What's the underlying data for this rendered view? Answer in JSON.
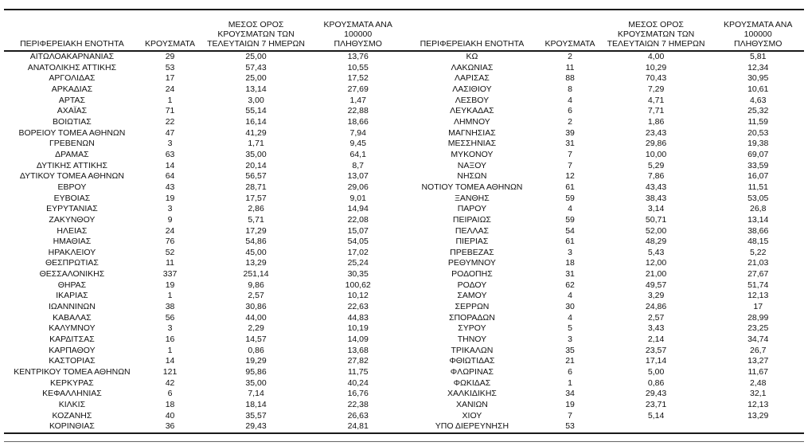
{
  "page": {
    "background": "#ffffff",
    "text_color": "#111111",
    "rule_color": "#1a1a1a"
  },
  "tables": {
    "headers": {
      "region": "ΠΕΡΙΦΕΡΕΙΑΚΗ ΕΝΟΤΗΤΑ",
      "cases": "ΚΡΟΥΣΜΑΤΑ",
      "avg7_last7days": "ΜΕΣΟΣ ΟΡΟΣ\nΚΡΟΥΣΜΑΤΩΝ ΤΩΝ\nΤΕΛΕΥΤΑΙΩΝ 7 ΗΜΕΡΩΝ",
      "per_100k": "ΚΡΟΥΣΜΑΤΑ ΑΝΑ 100000\nΠΛΗΘΥΣΜΟ"
    },
    "left_rows": [
      [
        "ΑΙΤΩΛΟΑΚΑΡΝΑΝΙΑΣ",
        "29",
        "25,00",
        "13,76"
      ],
      [
        "ΑΝΑΤΟΛΙΚΗΣ ΑΤΤΙΚΗΣ",
        "53",
        "57,43",
        "10,55"
      ],
      [
        "ΑΡΓΟΛΙΔΑΣ",
        "17",
        "25,00",
        "17,52"
      ],
      [
        "ΑΡΚΑΔΙΑΣ",
        "24",
        "13,14",
        "27,69"
      ],
      [
        "ΑΡΤΑΣ",
        "1",
        "3,00",
        "1,47"
      ],
      [
        "ΑΧΑΪΑΣ",
        "71",
        "55,14",
        "22,88"
      ],
      [
        "ΒΟΙΩΤΙΑΣ",
        "22",
        "16,14",
        "18,66"
      ],
      [
        "ΒΟΡΕΙΟΥ ΤΟΜΕΑ ΑΘΗΝΩΝ",
        "47",
        "41,29",
        "7,94"
      ],
      [
        "ΓΡΕΒΕΝΩΝ",
        "3",
        "1,71",
        "9,45"
      ],
      [
        "ΔΡΑΜΑΣ",
        "63",
        "35,00",
        "64,1"
      ],
      [
        "ΔΥΤΙΚΗΣ ΑΤΤΙΚΗΣ",
        "14",
        "20,14",
        "8,7"
      ],
      [
        "ΔΥΤΙΚΟΥ ΤΟΜΕΑ ΑΘΗΝΩΝ",
        "64",
        "56,57",
        "13,07"
      ],
      [
        "ΕΒΡΟΥ",
        "43",
        "28,71",
        "29,06"
      ],
      [
        "ΕΥΒΟΙΑΣ",
        "19",
        "17,57",
        "9,01"
      ],
      [
        "ΕΥΡΥΤΑΝΙΑΣ",
        "3",
        "2,86",
        "14,94"
      ],
      [
        "ΖΑΚΥΝΘΟΥ",
        "9",
        "5,71",
        "22,08"
      ],
      [
        "ΗΛΕΙΑΣ",
        "24",
        "17,29",
        "15,07"
      ],
      [
        "ΗΜΑΘΙΑΣ",
        "76",
        "54,86",
        "54,05"
      ],
      [
        "ΗΡΑΚΛΕΙΟΥ",
        "52",
        "45,00",
        "17,02"
      ],
      [
        "ΘΕΣΠΡΩΤΙΑΣ",
        "11",
        "13,29",
        "25,24"
      ],
      [
        "ΘΕΣΣΑΛΟΝΙΚΗΣ",
        "337",
        "251,14",
        "30,35"
      ],
      [
        "ΘΗΡΑΣ",
        "19",
        "9,86",
        "100,62"
      ],
      [
        "ΙΚΑΡΙΑΣ",
        "1",
        "2,57",
        "10,12"
      ],
      [
        "ΙΩΑΝΝΙΝΩΝ",
        "38",
        "30,86",
        "22,63"
      ],
      [
        "ΚΑΒΑΛΑΣ",
        "56",
        "44,00",
        "44,83"
      ],
      [
        "ΚΑΛΥΜΝΟΥ",
        "3",
        "2,29",
        "10,19"
      ],
      [
        "ΚΑΡΔΙΤΣΑΣ",
        "16",
        "14,57",
        "14,09"
      ],
      [
        "ΚΑΡΠΑΘΟΥ",
        "1",
        "0,86",
        "13,68"
      ],
      [
        "ΚΑΣΤΟΡΙΑΣ",
        "14",
        "19,29",
        "27,82"
      ],
      [
        "ΚΕΝΤΡΙΚΟΥ ΤΟΜΕΑ ΑΘΗΝΩΝ",
        "121",
        "95,86",
        "11,75"
      ],
      [
        "ΚΕΡΚΥΡΑΣ",
        "42",
        "35,00",
        "40,24"
      ],
      [
        "ΚΕΦΑΛΛΗΝΙΑΣ",
        "6",
        "7,14",
        "16,76"
      ],
      [
        "ΚΙΛΚΙΣ",
        "18",
        "18,14",
        "22,38"
      ],
      [
        "ΚΟΖΑΝΗΣ",
        "40",
        "35,57",
        "26,63"
      ],
      [
        "ΚΟΡΙΝΘΙΑΣ",
        "36",
        "29,43",
        "24,81"
      ]
    ],
    "right_rows": [
      [
        "ΚΩ",
        "2",
        "4,00",
        "5,81"
      ],
      [
        "ΛΑΚΩΝΙΑΣ",
        "11",
        "10,29",
        "12,34"
      ],
      [
        "ΛΑΡΙΣΑΣ",
        "88",
        "70,43",
        "30,95"
      ],
      [
        "ΛΑΣΙΘΙΟΥ",
        "8",
        "7,29",
        "10,61"
      ],
      [
        "ΛΕΣΒΟΥ",
        "4",
        "4,71",
        "4,63"
      ],
      [
        "ΛΕΥΚΑΔΑΣ",
        "6",
        "7,71",
        "25,32"
      ],
      [
        "ΛΗΜΝΟΥ",
        "2",
        "1,86",
        "11,59"
      ],
      [
        "ΜΑΓΝΗΣΙΑΣ",
        "39",
        "23,43",
        "20,53"
      ],
      [
        "ΜΕΣΣΗΝΙΑΣ",
        "31",
        "29,86",
        "19,38"
      ],
      [
        "ΜΥΚΟΝΟΥ",
        "7",
        "10,00",
        "69,07"
      ],
      [
        "ΝΑΞΟΥ",
        "7",
        "5,29",
        "33,59"
      ],
      [
        "ΝΗΣΩΝ",
        "12",
        "7,86",
        "16,07"
      ],
      [
        "ΝΟΤΙΟΥ ΤΟΜΕΑ ΑΘΗΝΩΝ",
        "61",
        "43,43",
        "11,51"
      ],
      [
        "ΞΑΝΘΗΣ",
        "59",
        "38,43",
        "53,05"
      ],
      [
        "ΠΑΡΟΥ",
        "4",
        "3,14",
        "26,8"
      ],
      [
        "ΠΕΙΡΑΙΩΣ",
        "59",
        "50,71",
        "13,14"
      ],
      [
        "ΠΕΛΛΑΣ",
        "54",
        "52,00",
        "38,66"
      ],
      [
        "ΠΙΕΡΙΑΣ",
        "61",
        "48,29",
        "48,15"
      ],
      [
        "ΠΡΕΒΕΖΑΣ",
        "3",
        "5,43",
        "5,22"
      ],
      [
        "ΡΕΘΥΜΝΟΥ",
        "18",
        "12,00",
        "21,03"
      ],
      [
        "ΡΟΔΟΠΗΣ",
        "31",
        "21,00",
        "27,67"
      ],
      [
        "ΡΟΔΟΥ",
        "62",
        "49,57",
        "51,74"
      ],
      [
        "ΣΑΜΟΥ",
        "4",
        "3,29",
        "12,13"
      ],
      [
        "ΣΕΡΡΩΝ",
        "30",
        "24,86",
        "17"
      ],
      [
        "ΣΠΟΡΑΔΩΝ",
        "4",
        "2,57",
        "28,99"
      ],
      [
        "ΣΥΡΟΥ",
        "5",
        "3,43",
        "23,25"
      ],
      [
        "ΤΗΝΟΥ",
        "3",
        "2,14",
        "34,74"
      ],
      [
        "ΤΡΙΚΑΛΩΝ",
        "35",
        "23,57",
        "26,7"
      ],
      [
        "ΦΘΙΩΤΙΔΑΣ",
        "21",
        "17,14",
        "13,27"
      ],
      [
        "ΦΛΩΡΙΝΑΣ",
        "6",
        "5,00",
        "11,67"
      ],
      [
        "ΦΩΚΙΔΑΣ",
        "1",
        "0,86",
        "2,48"
      ],
      [
        "ΧΑΛΚΙΔΙΚΗΣ",
        "34",
        "29,43",
        "32,1"
      ],
      [
        "ΧΑΝΙΩΝ",
        "19",
        "23,71",
        "12,13"
      ],
      [
        "ΧΙΟΥ",
        "7",
        "5,14",
        "13,29"
      ],
      [
        "ΥΠΟ ΔΙΕΡΕΥΝΗΣΗ",
        "53",
        "",
        ""
      ]
    ]
  }
}
